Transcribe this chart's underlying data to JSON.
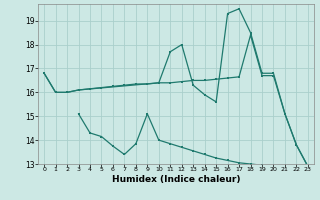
{
  "xlabel": "Humidex (Indice chaleur)",
  "xlim": [
    -0.5,
    23.5
  ],
  "ylim": [
    13.0,
    19.7
  ],
  "yticks": [
    13,
    14,
    15,
    16,
    17,
    18,
    19
  ],
  "xticks": [
    0,
    1,
    2,
    3,
    4,
    5,
    6,
    7,
    8,
    9,
    10,
    11,
    12,
    13,
    14,
    15,
    16,
    17,
    18,
    19,
    20,
    21,
    22,
    23
  ],
  "background_color": "#cce8e4",
  "grid_color": "#aacfcc",
  "line_color": "#1f7a6e",
  "line1_x": [
    0,
    1,
    2,
    3,
    4,
    5,
    6,
    7,
    8,
    9,
    10,
    11,
    12,
    13,
    14,
    15,
    16,
    17,
    18,
    19,
    20,
    21,
    22,
    23
  ],
  "line1_y": [
    16.8,
    16.0,
    16.0,
    16.1,
    16.15,
    16.2,
    16.25,
    16.3,
    16.35,
    16.35,
    16.4,
    16.4,
    16.45,
    16.5,
    16.5,
    16.55,
    16.6,
    16.65,
    18.4,
    16.7,
    16.7,
    15.1,
    13.8,
    12.9
  ],
  "line2_x": [
    0,
    1,
    2,
    3,
    10,
    11,
    12,
    13,
    14,
    15,
    16,
    17,
    18,
    19,
    20,
    21,
    22,
    23
  ],
  "line2_y": [
    16.8,
    16.0,
    16.0,
    16.1,
    16.4,
    17.7,
    18.0,
    16.3,
    15.9,
    15.6,
    19.3,
    19.5,
    18.5,
    16.8,
    16.8,
    15.1,
    13.8,
    12.9
  ],
  "line3_x": [
    3,
    4,
    5,
    6,
    7,
    8,
    9,
    10,
    11,
    12,
    13,
    14,
    15,
    16,
    17,
    18,
    19,
    20,
    21,
    22,
    23
  ],
  "line3_y": [
    15.1,
    14.3,
    14.15,
    13.75,
    13.4,
    13.85,
    15.1,
    14.0,
    13.85,
    13.7,
    13.55,
    13.4,
    13.25,
    13.15,
    13.05,
    13.0,
    12.95,
    12.9,
    12.85,
    12.82,
    12.8
  ]
}
